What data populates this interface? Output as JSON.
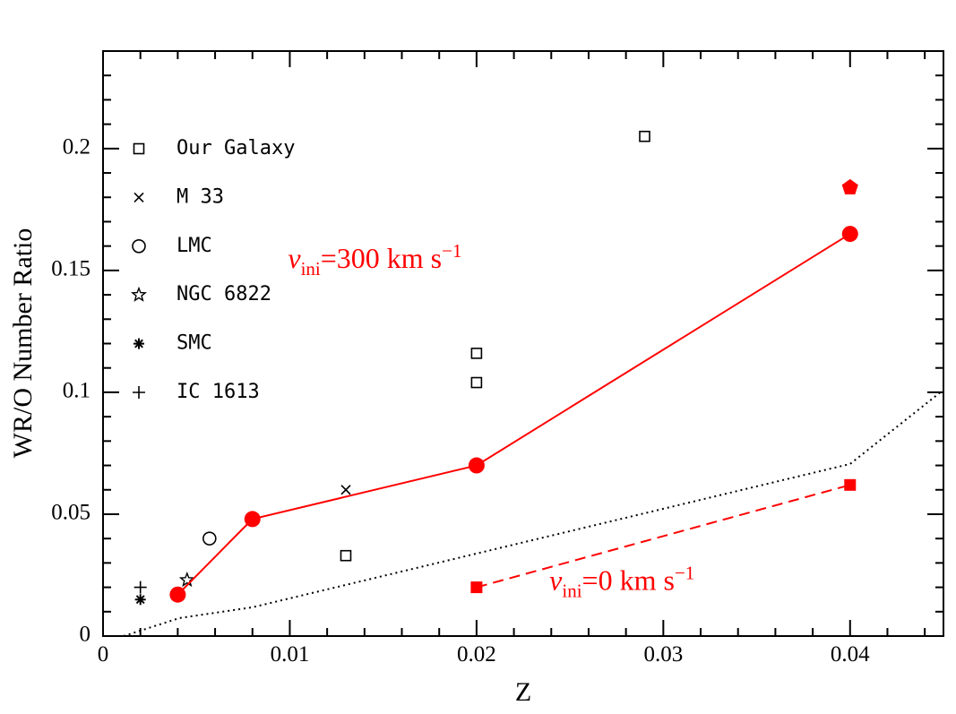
{
  "chart_data": {
    "type": "scatter",
    "x_label": "Z",
    "y_label": "WR/O Number Ratio",
    "xlim": [
      0,
      0.045
    ],
    "ylim": [
      0,
      0.24
    ],
    "xticks": [
      0,
      0.01,
      0.02,
      0.03,
      0.04
    ],
    "yticks": [
      0,
      0.05,
      0.1,
      0.15,
      0.2
    ],
    "xminorticks": [
      0.002,
      0.004,
      0.006,
      0.008,
      0.012,
      0.014,
      0.016,
      0.018,
      0.022,
      0.024,
      0.026,
      0.028,
      0.032,
      0.034,
      0.036,
      0.038,
      0.042,
      0.044
    ],
    "yminorticks": [
      0.01,
      0.02,
      0.03,
      0.04,
      0.06,
      0.07,
      0.08,
      0.09,
      0.11,
      0.12,
      0.13,
      0.14,
      0.16,
      0.17,
      0.18,
      0.19,
      0.21,
      0.22,
      0.23
    ],
    "series": [
      {
        "name": "Our Galaxy",
        "marker": "square-open",
        "color": "#000000",
        "x": [
          0.013,
          0.02,
          0.02,
          0.029
        ],
        "y": [
          0.033,
          0.104,
          0.116,
          0.205
        ]
      },
      {
        "name": "M 33",
        "marker": "cross",
        "color": "#000000",
        "x": [
          0.013
        ],
        "y": [
          0.06
        ]
      },
      {
        "name": "LMC",
        "marker": "circle-open",
        "color": "#000000",
        "x": [
          0.0057
        ],
        "y": [
          0.04
        ]
      },
      {
        "name": "NGC 6822",
        "marker": "star-open",
        "color": "#000000",
        "x": [
          0.0045
        ],
        "y": [
          0.023
        ]
      },
      {
        "name": "SMC",
        "marker": "asterisk",
        "color": "#000000",
        "x": [
          0.002
        ],
        "y": [
          0.015
        ]
      },
      {
        "name": "IC 1613",
        "marker": "plus",
        "color": "#000000",
        "x": [
          0.002
        ],
        "y": [
          0.02
        ]
      },
      {
        "marker": "circle-filled",
        "line": "solid",
        "color": "#ff0000",
        "x": [
          0.004,
          0.008,
          0.02,
          0.04
        ],
        "y": [
          0.017,
          0.048,
          0.07,
          0.165
        ]
      },
      {
        "marker": "pentagon-filled",
        "color": "#ff0000",
        "x": [
          0.04
        ],
        "y": [
          0.184
        ]
      },
      {
        "marker": "square-filled",
        "line": "dashed",
        "color": "#ff0000",
        "x": [
          0.02,
          0.04
        ],
        "y": [
          0.02,
          0.062
        ]
      },
      {
        "line": "dotted",
        "color": "#000000",
        "x": [
          0.0011,
          0.0041,
          0.008,
          0.04,
          0.045
        ],
        "y": [
          0,
          0.0074,
          0.0118,
          0.0706,
          0.101
        ]
      }
    ],
    "annotations": [
      {
        "symbol": "v",
        "subscript": "ini",
        "text": "=300  km  s",
        "superscript": "−1",
        "color": "#ff0000",
        "x": 0.0099,
        "y": 0.151
      },
      {
        "symbol": "v",
        "subscript": "ini",
        "text": "=0  km  s",
        "superscript": "−1",
        "color": "#ff0000",
        "x": 0.0239,
        "y": 0.019
      }
    ]
  }
}
